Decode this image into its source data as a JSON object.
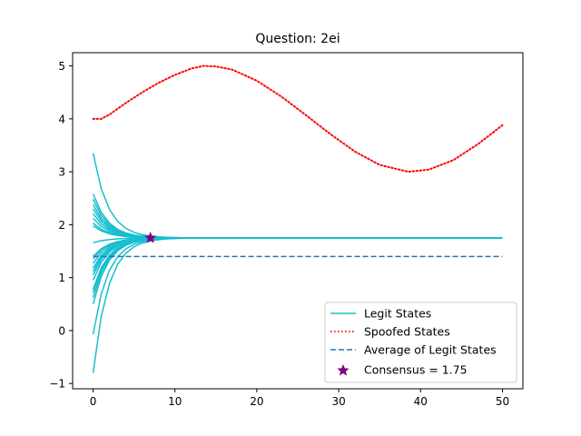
{
  "chart_data": {
    "type": "line",
    "title": "Question: 2ei",
    "xlabel": "",
    "ylabel": "",
    "xlim": [
      -2.5,
      52.5
    ],
    "ylim": [
      -1.1,
      5.25
    ],
    "x_ticks": [
      0,
      10,
      20,
      30,
      40,
      50
    ],
    "y_ticks": [
      -1,
      0,
      1,
      2,
      3,
      4,
      5
    ],
    "grid": false,
    "legend_position": "lower-right",
    "colors": {
      "legit": "#17becf",
      "spoofed": "#ff0000",
      "average": "#1f77b4",
      "consensus": "#800080"
    },
    "legend": [
      {
        "label": "Legit States",
        "style": "solid",
        "color": "#17becf"
      },
      {
        "label": "Spoofed States",
        "style": "dotted",
        "color": "#ff0000"
      },
      {
        "label": "Average of Legit States",
        "style": "dashed",
        "color": "#1f77b4"
      },
      {
        "label": "Consensus = 1.75",
        "style": "star",
        "color": "#800080"
      }
    ],
    "legit_states": {
      "consensus_value": 1.75,
      "x_end": 50,
      "initial_values": [
        3.35,
        2.58,
        2.48,
        2.38,
        2.3,
        2.21,
        2.12,
        2.03,
        1.98,
        1.66,
        1.4,
        1.35,
        1.27,
        1.18,
        1.12,
        1.05,
        0.95,
        0.78,
        0.72,
        0.62,
        0.5,
        -0.07,
        -0.8
      ]
    },
    "spoofed_states": {
      "x": [
        0,
        1,
        2,
        4,
        6,
        8,
        10,
        12,
        13.5,
        15,
        17,
        20,
        23,
        26,
        29,
        32,
        35,
        38.5,
        41,
        44,
        47,
        50
      ],
      "y": [
        4.0,
        4.0,
        4.08,
        4.3,
        4.5,
        4.68,
        4.83,
        4.95,
        5.0,
        4.99,
        4.93,
        4.72,
        4.42,
        4.07,
        3.71,
        3.38,
        3.13,
        3.0,
        3.04,
        3.22,
        3.52,
        3.88
      ]
    },
    "average_of_legit": {
      "value": 1.4,
      "x": [
        0,
        50
      ]
    },
    "consensus_point": {
      "x": 7,
      "y": 1.75
    }
  }
}
